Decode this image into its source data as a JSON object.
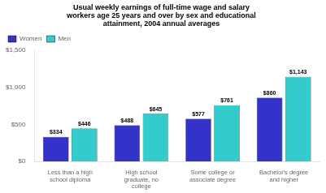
{
  "chart_data": {
    "type": "bar",
    "title": "Usual weekly earnings of full-time wage and salary\nworkers age 25 years and over by sex and educational\nattainment, 2004 annual averages",
    "categories": [
      "Less than a high\nschool diploma",
      "High school\ngraduate, no\ncollege",
      "Some college or\nassociate degree",
      "Bachelor's degree\nand higher"
    ],
    "series": [
      {
        "name": "Women",
        "color": "#3333CC",
        "values": [
          334,
          488,
          577,
          860
        ],
        "value_labels": [
          "$334",
          "$488",
          "$577",
          "$860"
        ]
      },
      {
        "name": "Men",
        "color": "#33CCCC",
        "values": [
          446,
          645,
          761,
          1143
        ],
        "value_labels": [
          "$446",
          "$645",
          "$761",
          "$1,143"
        ]
      }
    ],
    "ylim": [
      0,
      1500
    ],
    "yticks": [
      {
        "value": 0,
        "label": "$0"
      },
      {
        "value": 500,
        "label": "$500"
      },
      {
        "value": 1000,
        "label": "$1,000"
      },
      {
        "value": 1500,
        "label": "$1,500"
      }
    ],
    "data_labels": true,
    "legend": "upper left",
    "grid": false
  }
}
